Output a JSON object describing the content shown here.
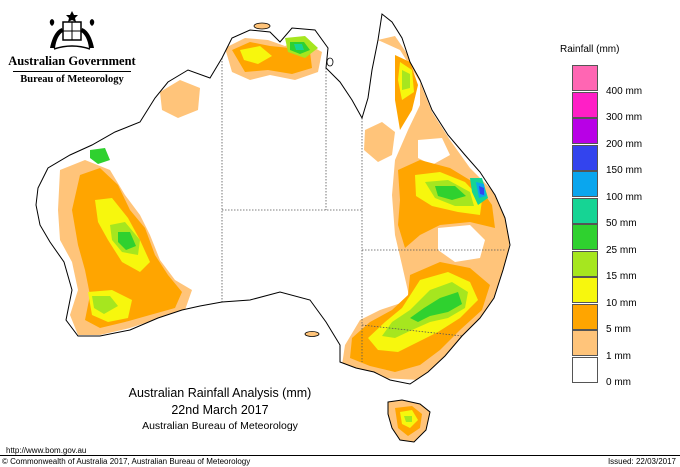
{
  "header": {
    "gov_name": "Australian Government",
    "bureau_name": "Bureau of Meteorology",
    "crest_icon": "coat-of-arms-icon"
  },
  "legend": {
    "title": "Rainfall (mm)",
    "items": [
      {
        "label": "",
        "color": "#ff66b3"
      },
      {
        "label": "400 mm",
        "color": "#ff1fc6"
      },
      {
        "label": "300 mm",
        "color": "#b800e6"
      },
      {
        "label": "200 mm",
        "color": "#3344ee"
      },
      {
        "label": "150 mm",
        "color": "#0aa6ee"
      },
      {
        "label": "100 mm",
        "color": "#16d494"
      },
      {
        "label": "50 mm",
        "color": "#2fd12f"
      },
      {
        "label": "25 mm",
        "color": "#a6e61f"
      },
      {
        "label": "15 mm",
        "color": "#f7f70d"
      },
      {
        "label": "10 mm",
        "color": "#ffa500"
      },
      {
        "label": "5 mm",
        "color": "#ffc47a"
      },
      {
        "label": "1 mm",
        "color": "#ffffff"
      },
      {
        "label": "0 mm",
        "color": ""
      }
    ]
  },
  "caption": {
    "line1": "Australian Rainfall Analysis (mm)",
    "line2": "22nd March 2017",
    "line3": "Australian Bureau of Meteorology"
  },
  "footer": {
    "url": "http://www.bom.gov.au",
    "copyright": "© Commonwealth of Australia 2017, Australian Bureau of Meteorology",
    "issued": "Issued: 22/03/2017"
  },
  "map": {
    "colors": {
      "outline": "#000000",
      "border": "#555555",
      "band_1mm": "#ffc47a",
      "band_5mm": "#ffa500",
      "band_10mm": "#f7f70d",
      "band_15mm": "#a6e61f",
      "band_25mm": "#2fd12f",
      "band_50mm": "#16d494",
      "band_100mm": "#0aa6ee",
      "band_150mm": "#3344ee"
    }
  }
}
